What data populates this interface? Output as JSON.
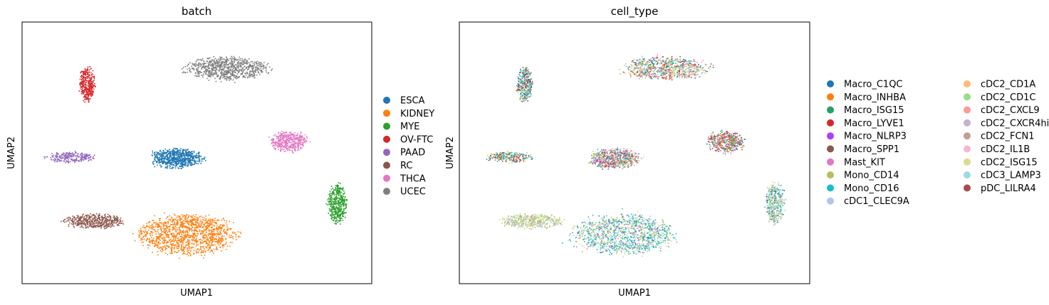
{
  "chart_data": [
    {
      "type": "scatter",
      "title": "batch",
      "xlabel": "UMAP1",
      "ylabel": "UMAP2",
      "xlim": [
        -10,
        10
      ],
      "ylim": [
        -10,
        10
      ],
      "grid": false,
      "legend_placement": "right",
      "legend_title": "",
      "ticks_visible": false,
      "series": [
        {
          "name": "ESCA",
          "color": "#1f77b4",
          "clusters": [
            {
              "cx": -1.2,
              "cy": -0.4,
              "rx": 1.5,
              "ry": 0.75,
              "n": 700
            }
          ]
        },
        {
          "name": "KIDNEY",
          "color": "#ff7f0e",
          "clusters": [
            {
              "cx": -0.6,
              "cy": -6.2,
              "rx": 2.9,
              "ry": 1.6,
              "n": 1300
            }
          ]
        },
        {
          "name": "MYE",
          "color": "#2ca02c",
          "clusters": [
            {
              "cx": 8.0,
              "cy": -3.8,
              "rx": 0.55,
              "ry": 1.55,
              "n": 450
            }
          ]
        },
        {
          "name": "OV-FTC",
          "color": "#d62728",
          "clusters": [
            {
              "cx": -6.3,
              "cy": 5.3,
              "rx": 0.45,
              "ry": 1.3,
              "n": 350
            }
          ]
        },
        {
          "name": "PAAD",
          "color": "#9467bd",
          "clusters": [
            {
              "cx": -7.2,
              "cy": -0.3,
              "rx": 1.4,
              "ry": 0.4,
              "n": 250
            }
          ]
        },
        {
          "name": "RC",
          "color": "#8c564b",
          "clusters": [
            {
              "cx": -5.9,
              "cy": -5.2,
              "rx": 1.8,
              "ry": 0.55,
              "n": 450
            }
          ]
        },
        {
          "name": "THCA",
          "color": "#e377c2",
          "clusters": [
            {
              "cx": 5.2,
              "cy": 0.9,
              "rx": 1.1,
              "ry": 0.8,
              "n": 450
            }
          ]
        },
        {
          "name": "UCEC",
          "color": "#7f7f7f",
          "clusters": [
            {
              "cx": 1.7,
              "cy": 6.5,
              "rx": 2.5,
              "ry": 0.9,
              "n": 800
            }
          ]
        }
      ]
    },
    {
      "type": "scatter",
      "title": "cell_type",
      "xlabel": "UMAP1",
      "ylabel": "UMAP2",
      "xlim": [
        -10,
        10
      ],
      "ylim": [
        -10,
        10
      ],
      "grid": false,
      "legend_placement": "right",
      "legend_columns": 2,
      "ticks_visible": false,
      "series": [
        {
          "name": "Macro_C1QC",
          "color": "#1f77b4"
        },
        {
          "name": "Macro_INHBA",
          "color": "#ff7f0e"
        },
        {
          "name": "Macro_ISG15",
          "color": "#279e68"
        },
        {
          "name": "Macro_LYVE1",
          "color": "#d62728"
        },
        {
          "name": "Macro_NLRP3",
          "color": "#aa40fc"
        },
        {
          "name": "Macro_SPP1",
          "color": "#8c564b"
        },
        {
          "name": "Mast_KIT",
          "color": "#e377c2"
        },
        {
          "name": "Mono_CD14",
          "color": "#b5bd61"
        },
        {
          "name": "Mono_CD16",
          "color": "#17becf"
        },
        {
          "name": "cDC1_CLEC9A",
          "color": "#aec7e8"
        },
        {
          "name": "cDC2_CD1A",
          "color": "#ffbb78"
        },
        {
          "name": "cDC2_CD1C",
          "color": "#98df8a"
        },
        {
          "name": "cDC2_CXCL9",
          "color": "#ff9896"
        },
        {
          "name": "cDC2_CXCR4hi",
          "color": "#c5b0d5"
        },
        {
          "name": "cDC2_FCN1",
          "color": "#c49c94"
        },
        {
          "name": "cDC2_IL1B",
          "color": "#f7b6d2"
        },
        {
          "name": "cDC2_ISG15",
          "color": "#dbdb8d"
        },
        {
          "name": "cDC3_LAMP3",
          "color": "#9edae5"
        },
        {
          "name": "pDC_LILRA4",
          "color": "#ad494a"
        }
      ],
      "clusters": [
        {
          "cx": -1.2,
          "cy": -0.4,
          "rx": 1.5,
          "ry": 0.75,
          "n": 700,
          "mix": [
            0,
            1,
            2,
            3,
            4,
            5,
            6,
            7,
            8,
            11,
            12,
            13,
            14,
            15,
            16
          ]
        },
        {
          "cx": -0.6,
          "cy": -6.2,
          "rx": 2.9,
          "ry": 1.6,
          "n": 1300,
          "mix": [
            8,
            8,
            8,
            7,
            16,
            16,
            11,
            6,
            0,
            13,
            17
          ]
        },
        {
          "cx": 8.0,
          "cy": -3.8,
          "rx": 0.55,
          "ry": 1.55,
          "n": 450,
          "mix": [
            8,
            7,
            16,
            0,
            13,
            17,
            11
          ]
        },
        {
          "cx": -6.3,
          "cy": 5.3,
          "rx": 0.45,
          "ry": 1.3,
          "n": 350,
          "mix": [
            0,
            0,
            8,
            5,
            3,
            11,
            17,
            7
          ]
        },
        {
          "cx": -7.2,
          "cy": -0.3,
          "rx": 1.4,
          "ry": 0.4,
          "n": 250,
          "mix": [
            0,
            8,
            5,
            3,
            11,
            16,
            7
          ]
        },
        {
          "cx": -5.9,
          "cy": -5.2,
          "rx": 1.8,
          "ry": 0.55,
          "n": 450,
          "mix": [
            16,
            16,
            7,
            11,
            9,
            14
          ]
        },
        {
          "cx": 5.2,
          "cy": 0.9,
          "rx": 1.1,
          "ry": 0.8,
          "n": 450,
          "mix": [
            1,
            1,
            0,
            3,
            5,
            6,
            8,
            13,
            2
          ]
        },
        {
          "cx": 1.7,
          "cy": 6.5,
          "rx": 2.5,
          "ry": 0.9,
          "n": 800,
          "mix": [
            0,
            1,
            2,
            3,
            5,
            6,
            7,
            8,
            11,
            12,
            13,
            14,
            16,
            17
          ]
        }
      ]
    }
  ]
}
